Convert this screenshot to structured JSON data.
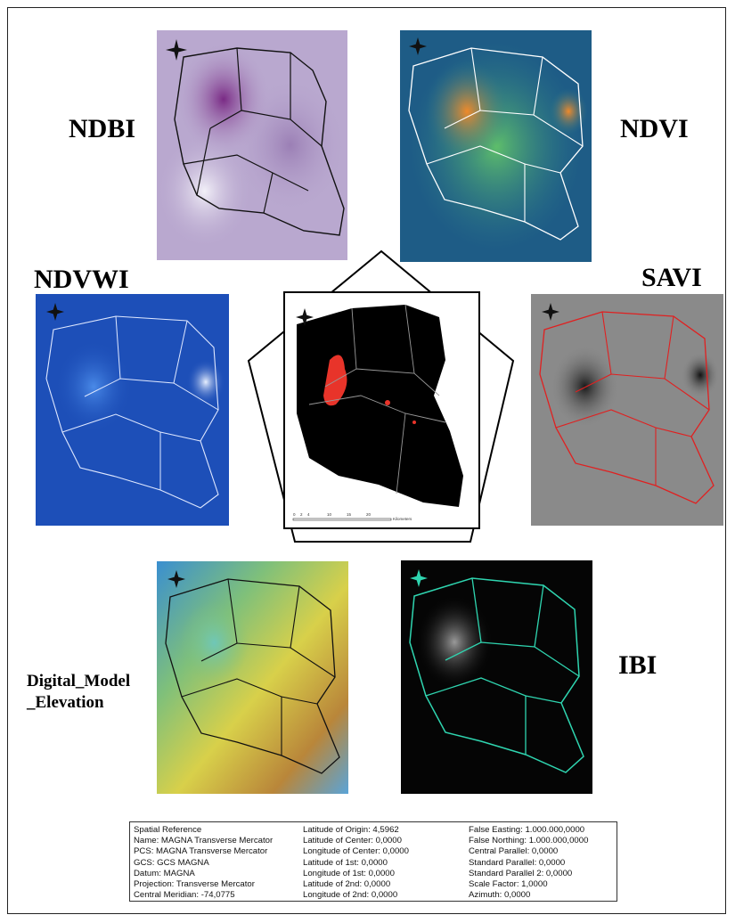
{
  "labels": {
    "ndbi": "NDBI",
    "ndvi": "NDVI",
    "ndvwi": "NDVWI",
    "savi": "SAVI",
    "dem_line1": "Digital_Model",
    "dem_line2": "_Elevation",
    "ibi": "IBI"
  },
  "panels": [
    {
      "id": "ndbi",
      "palette": "purple-white",
      "boundary_color": "#111111"
    },
    {
      "id": "ndvi",
      "palette": "blue-green-orange",
      "boundary_color": "#ffffff"
    },
    {
      "id": "ndvwi",
      "palette": "blue",
      "boundary_color": "#dfe8ff"
    },
    {
      "id": "center",
      "palette": "black-red",
      "boundary_color": "#9a9a9a"
    },
    {
      "id": "savi",
      "palette": "grayscale",
      "boundary_color": "#e02020"
    },
    {
      "id": "dem",
      "palette": "blue-green-yellow-brown",
      "boundary_color": "#111111"
    },
    {
      "id": "ibi",
      "palette": "black-gray",
      "boundary_color": "#2fd5b0"
    }
  ],
  "center_scale": [
    "0",
    "2",
    "4",
    "10",
    "15",
    "20",
    "Kilometers"
  ],
  "colors": {
    "ndbi_bg": "#b9a8cf",
    "ndvi_bg": "#2c7a8a",
    "ndvwi_bg": "#1d4fb8",
    "savi_bg": "#8a8a8a",
    "dem_bg": "#7fc07a",
    "ibi_bg": "#050505",
    "center_red": "#e8342a"
  },
  "spatial_reference": {
    "col1": [
      "Spatial Reference",
      "Name: MAGNA Transverse Mercator",
      "PCS: MAGNA Transverse Mercator",
      "GCS: GCS MAGNA",
      "Datum: MAGNA",
      "Projection: Transverse Mercator",
      "Central Meridian: -74,0775"
    ],
    "col2": [
      "Latitude of Origin: 4,5962",
      "Latitude of Center: 0,0000",
      "Longitude of Center: 0,0000",
      "Latitude of 1st: 0,0000",
      "Longitude of 1st: 0,0000",
      "Latitude of 2nd: 0,0000",
      "Longitude of 2nd: 0,0000"
    ],
    "col3": [
      "False Easting: 1.000.000,0000",
      "False Northing: 1.000.000,0000",
      "Central Parallel: 0,0000",
      "Standard Parallel: 0,0000",
      "Standard Parallel 2: 0,0000",
      "Scale Factor: 1,0000",
      "Azimuth: 0,0000"
    ]
  }
}
